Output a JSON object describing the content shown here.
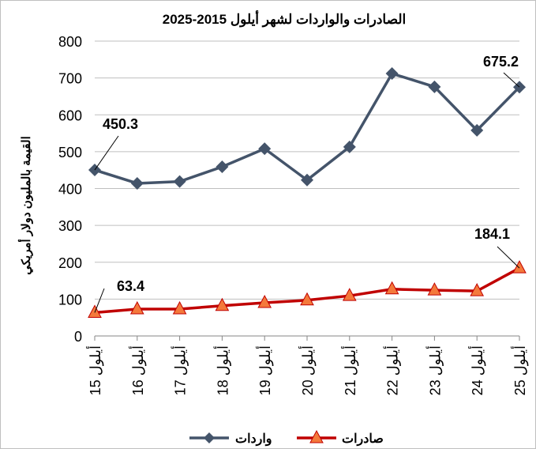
{
  "chart_data": {
    "type": "line",
    "title": "الصادرات والواردات لشهر أيلول 2015-2025",
    "xlabel": "",
    "ylabel": "القيمة بالمليون دولار أمريكي",
    "ylim": [
      0,
      800
    ],
    "yticks": [
      0,
      100,
      200,
      300,
      400,
      500,
      600,
      700,
      800
    ],
    "grid": true,
    "legend_position": "bottom",
    "categories": [
      "أيلول 15",
      "أيلول 16",
      "أيلول 17",
      "أيلول 18",
      "أيلول 19",
      "أيلول 20",
      "أيلول 21",
      "أيلول 22",
      "أيلول 23",
      "أيلول 24",
      "أيلول 25"
    ],
    "series": [
      {
        "name": "واردات",
        "color": "#44546A",
        "marker": "diamond",
        "values": [
          450.3,
          414,
          419,
          459,
          508,
          423,
          513,
          712,
          676,
          558,
          675.2
        ],
        "labels": {
          "0": "450.3",
          "10": "675.2"
        }
      },
      {
        "name": "صادرات",
        "color": "#C00000",
        "marker_fill": "#F4793B",
        "marker": "triangle",
        "values": [
          63.4,
          73,
          73,
          82,
          90,
          97,
          109,
          127,
          124,
          122,
          184.1
        ],
        "labels": {
          "0": "63.4",
          "10": "184.1"
        }
      }
    ]
  }
}
